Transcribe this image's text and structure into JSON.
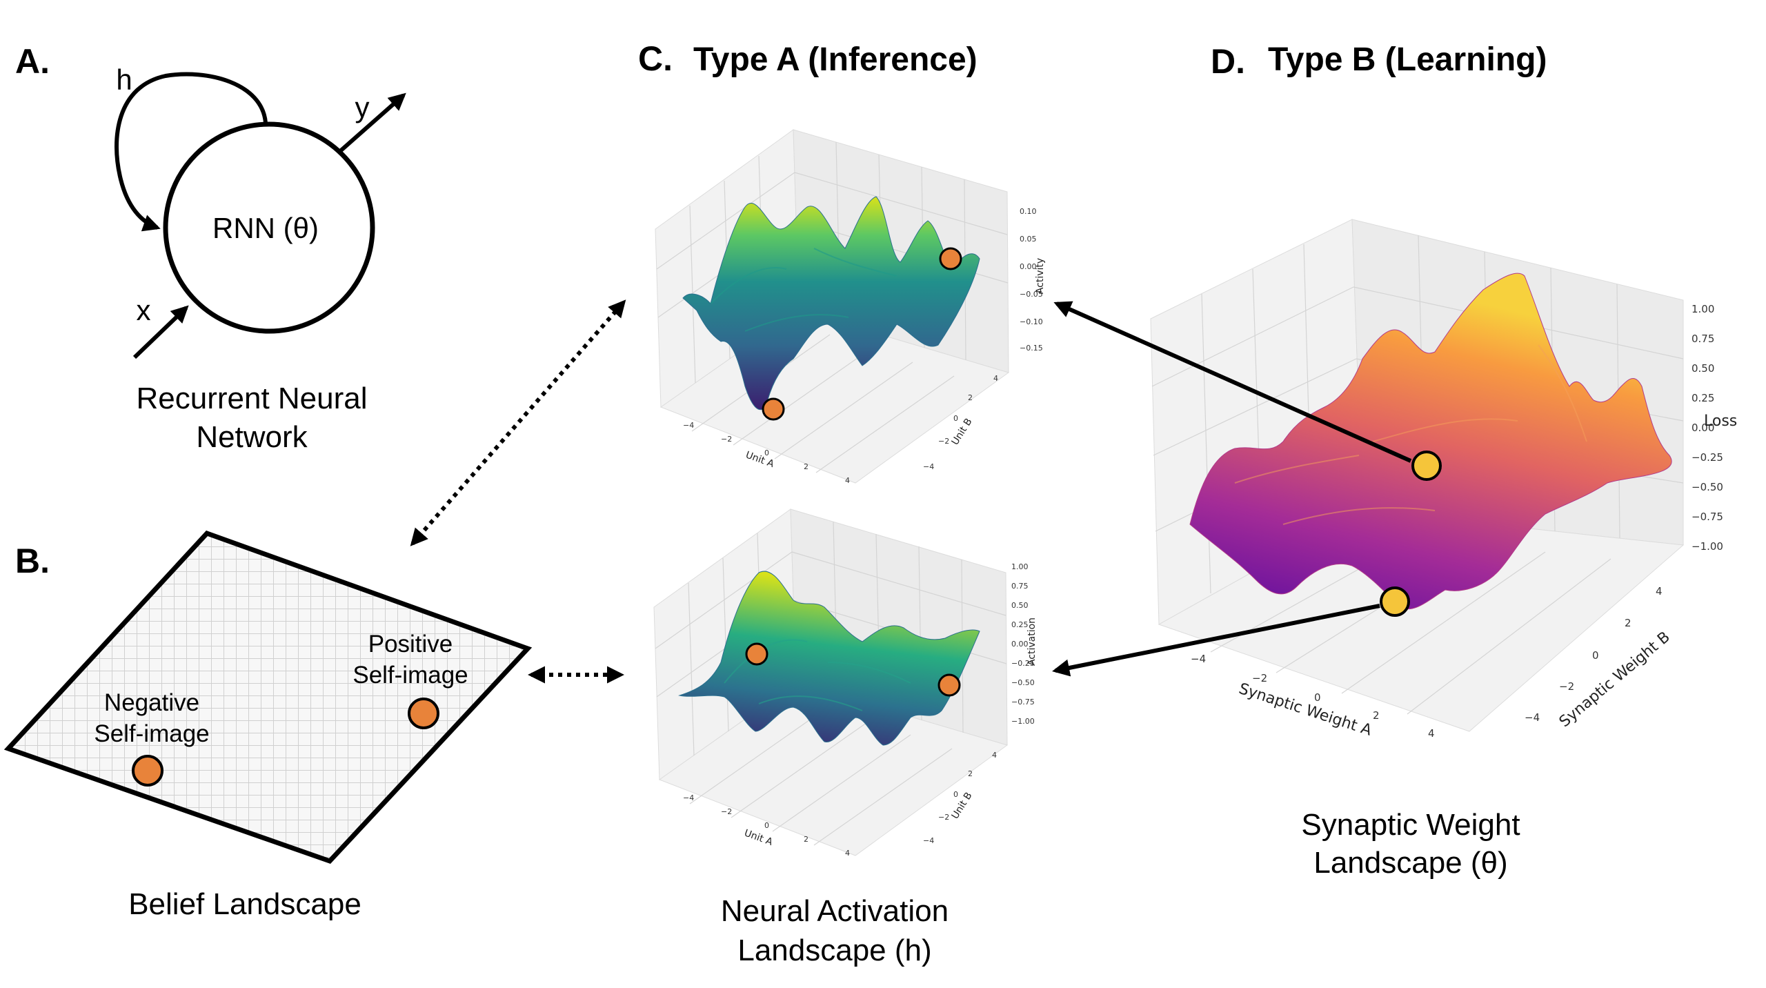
{
  "panels": {
    "a": {
      "letter": "A.",
      "caption_lines": [
        "Recurrent Neural",
        "Network"
      ],
      "node_label": "RNN (θ)",
      "input_label": "x",
      "output_label": "y",
      "hidden_label": "h"
    },
    "b": {
      "letter": "B.",
      "caption": "Belief Landscape",
      "negative_lines": [
        "Negative",
        "Self-image"
      ],
      "positive_lines": [
        "Positive",
        "Self-image"
      ]
    },
    "c": {
      "letter": "C.",
      "title": "Type A (Inference)",
      "caption_lines": [
        "Neural Activation",
        "Landscape (h)"
      ],
      "top_plot": {
        "z_label": "Activity",
        "x_label": "Unit A",
        "y_label": "Unit B",
        "z_ticks": [
          "0.10",
          "0.05",
          "0.00",
          "−0.05",
          "−0.10",
          "−0.15"
        ],
        "x_ticks": [
          "−4",
          "−2",
          "0",
          "2",
          "4"
        ],
        "y_ticks": [
          "−4",
          "−2",
          "0",
          "2",
          "4"
        ]
      },
      "bottom_plot": {
        "z_label": "Activation",
        "x_label": "Unit A",
        "y_label": "Unit B",
        "z_ticks": [
          "1.00",
          "0.75",
          "0.50",
          "0.25",
          "0.00",
          "−0.25",
          "−0.50",
          "−0.75",
          "−1.00"
        ],
        "x_ticks": [
          "−4",
          "−2",
          "0",
          "2",
          "4"
        ],
        "y_ticks": [
          "−4",
          "−2",
          "0",
          "2",
          "4"
        ]
      }
    },
    "d": {
      "letter": "D.",
      "title": "Type B (Learning)",
      "caption_lines": [
        "Synaptic Weight",
        "Landscape (θ)"
      ],
      "plot": {
        "z_label": "Loss",
        "x_label": "Synaptic Weight A",
        "y_label": "Synaptic Weight B",
        "z_ticks": [
          "1.00",
          "0.75",
          "0.50",
          "0.25",
          "0.00",
          "−0.25",
          "−0.50",
          "−0.75",
          "−1.00"
        ],
        "x_ticks": [
          "−4",
          "−2",
          "0",
          "2",
          "4"
        ],
        "y_ticks": [
          "−4",
          "−2",
          "0",
          "2",
          "4"
        ]
      }
    }
  },
  "colors": {
    "belief_marker": "#E8833A",
    "weight_marker": "#F5C53A",
    "viridis_low": "#3B1E6E",
    "viridis_mid": "#21908C",
    "viridis_high": "#D8E219",
    "plasma_low": "#6A0FA0",
    "plasma_mid": "#D8577A",
    "plasma_high": "#F7C940"
  }
}
